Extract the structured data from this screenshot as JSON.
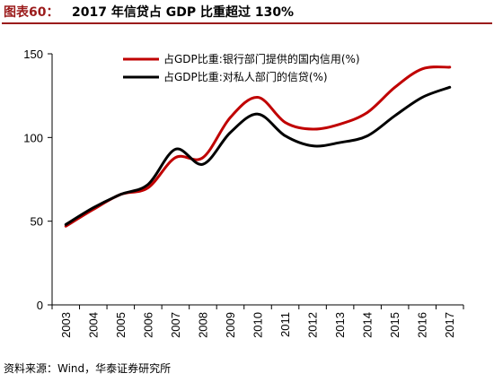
{
  "figure": {
    "label": "图表60：",
    "title": "2017 年信贷占 GDP 比重超过 130%",
    "source": "资料来源：Wind，华泰证券研究所"
  },
  "chart_data": {
    "type": "line",
    "title": "2017 年信贷占 GDP 比重超过 130%",
    "xlabel": "",
    "ylabel": "",
    "categories": [
      "2003",
      "2004",
      "2005",
      "2006",
      "2007",
      "2008",
      "2009",
      "2010",
      "2011",
      "2012",
      "2013",
      "2014",
      "2015",
      "2016",
      "2017"
    ],
    "ylim": [
      0,
      150
    ],
    "yticks": [
      0,
      50,
      100,
      150
    ],
    "grid": false,
    "legend_position": "top-center",
    "series": [
      {
        "name": "占GDP比重:银行部门提供的国内信用(%)",
        "color": "#c00000",
        "values": [
          47,
          57,
          66,
          70,
          88,
          88,
          112,
          124,
          109,
          105,
          108,
          115,
          130,
          141,
          142
        ]
      },
      {
        "name": "占GDP比重:对私人部门的信贷(%)",
        "color": "#000000",
        "values": [
          48,
          58,
          66,
          72,
          93,
          84,
          103,
          114,
          101,
          95,
          97,
          101,
          113,
          124,
          130
        ]
      }
    ]
  }
}
